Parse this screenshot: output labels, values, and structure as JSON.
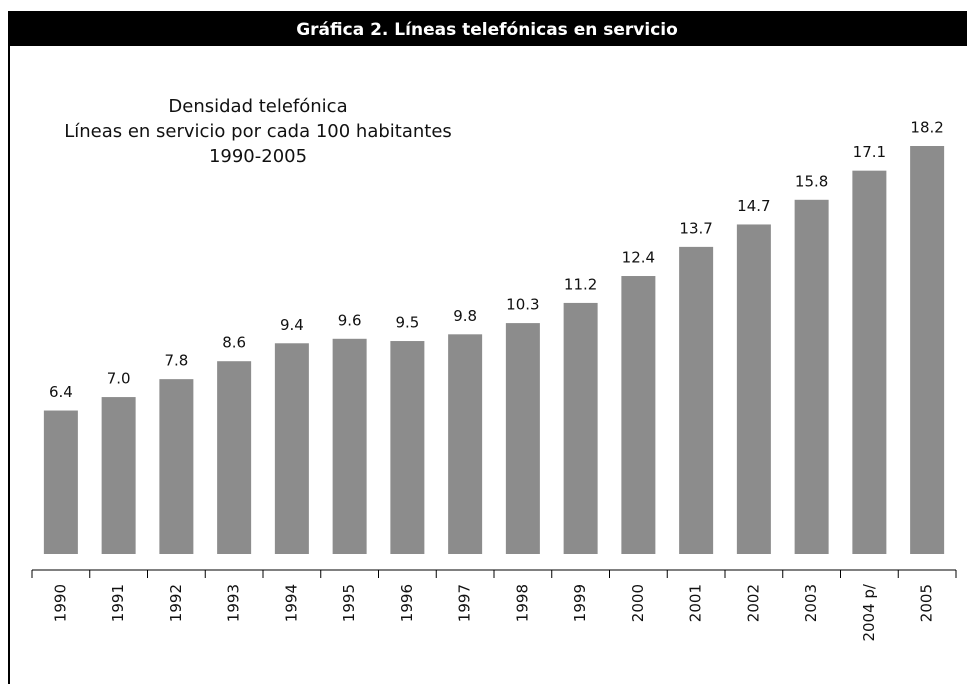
{
  "chart_data": {
    "type": "bar",
    "title": "Gráfica 2. Líneas telefónicas en servicio",
    "subtitle": [
      "Densidad telefónica",
      "Líneas  en servicio por cada 100 habitantes",
      "1990-2005"
    ],
    "categories": [
      "1990",
      "1991",
      "1992",
      "1993",
      "1994",
      "1995",
      "1996",
      "1997",
      "1998",
      "1999",
      "2000",
      "2001",
      "2002",
      "2003",
      "2004 p/",
      "2005"
    ],
    "values": [
      6.4,
      7.0,
      7.8,
      8.6,
      9.4,
      9.6,
      9.5,
      9.8,
      10.3,
      11.2,
      12.4,
      13.7,
      14.7,
      15.8,
      17.1,
      18.2
    ],
    "value_labels": [
      "6.4",
      "7.0",
      "7.8",
      "8.6",
      "9.4",
      "9.6",
      "9.5",
      "9.8",
      "10.3",
      "11.2",
      "12.4",
      "13.7",
      "14.7",
      "15.8",
      "17.1",
      "18.2"
    ],
    "color": "#8c8c8c"
  }
}
